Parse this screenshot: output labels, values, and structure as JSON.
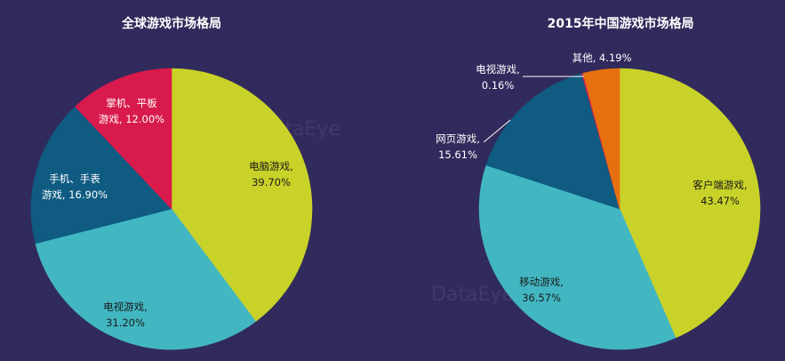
{
  "watermark": "DataEye",
  "chart_data": [
    {
      "type": "pie",
      "title": "全球游戏市场格局",
      "slices": [
        {
          "label": "电脑游戏",
          "value": 39.7,
          "display": "39.70%",
          "color": "#c9d229"
        },
        {
          "label": "电视游戏",
          "value": 31.2,
          "display": "31.20%",
          "color": "#42b7c2"
        },
        {
          "label": "手机、手表游戏",
          "value": 16.9,
          "display": "16.90%",
          "color": "#0f5b82"
        },
        {
          "label": "掌机、平板游戏",
          "value": 12.0,
          "display": "12.00%",
          "color": "#d81a4c"
        }
      ]
    },
    {
      "type": "pie",
      "title": "2015年中国游戏市场格局",
      "slices": [
        {
          "label": "客户端游戏",
          "value": 43.47,
          "display": "43.47%",
          "color": "#c9d229"
        },
        {
          "label": "移动游戏",
          "value": 36.57,
          "display": "36.57%",
          "color": "#42b7c2"
        },
        {
          "label": "网页游戏",
          "value": 15.61,
          "display": "15.61%",
          "color": "#0f5b82"
        },
        {
          "label": "电视游戏",
          "value": 0.16,
          "display": "0.16%",
          "color": "#d81a4c"
        },
        {
          "label": "其他",
          "value": 4.19,
          "display": "4.19%",
          "color": "#e6700f"
        }
      ]
    }
  ]
}
